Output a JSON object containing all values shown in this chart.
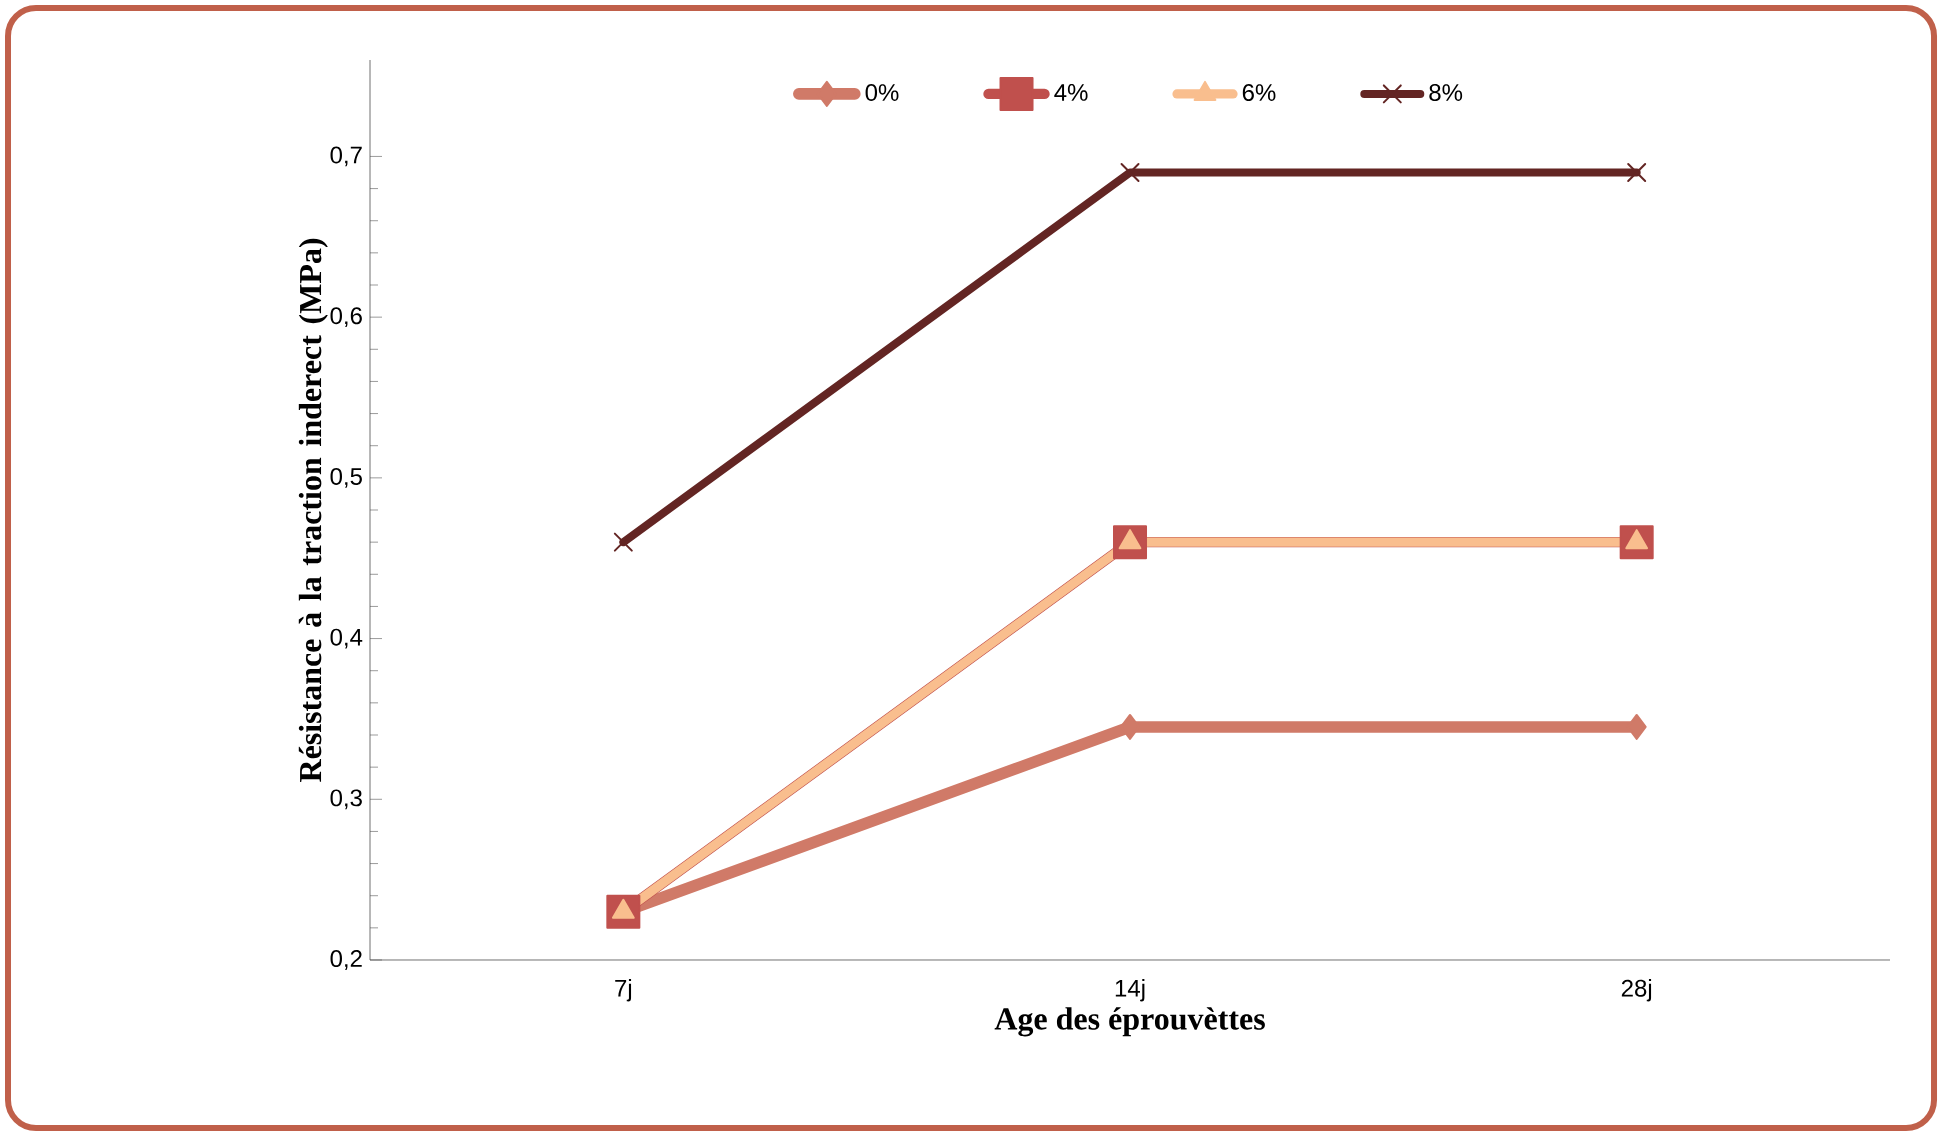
{
  "chart_data": {
    "type": "line",
    "xlabel": "Age des éprouvèttes",
    "ylabel": "Résistance à la traction inderect (MPa)",
    "categories": [
      "7j",
      "14j",
      "28j"
    ],
    "series": [
      {
        "name": "0%",
        "color": "#d07a68",
        "marker": "diamond",
        "values": [
          0.23,
          0.345,
          0.345
        ]
      },
      {
        "name": "4%",
        "color": "#c0504d",
        "marker": "square",
        "values": [
          0.23,
          0.46,
          0.46
        ]
      },
      {
        "name": "6%",
        "color": "#f9be8e",
        "marker": "triangle",
        "values": [
          0.23,
          0.46,
          0.46
        ]
      },
      {
        "name": "8%",
        "color": "#632523",
        "marker": "cross",
        "values": [
          0.46,
          0.69,
          0.69
        ]
      }
    ],
    "ylim": [
      0.2,
      0.76
    ],
    "yticks": [
      {
        "value": 0.2,
        "label": "0,2"
      },
      {
        "value": 0.3,
        "label": "0,3"
      },
      {
        "value": 0.4,
        "label": "0,4"
      },
      {
        "value": 0.5,
        "label": "0,5"
      },
      {
        "value": 0.6,
        "label": "0,6"
      },
      {
        "value": 0.7,
        "label": "0,7"
      }
    ],
    "grid": false,
    "legend": "top",
    "line_style": "solid"
  }
}
